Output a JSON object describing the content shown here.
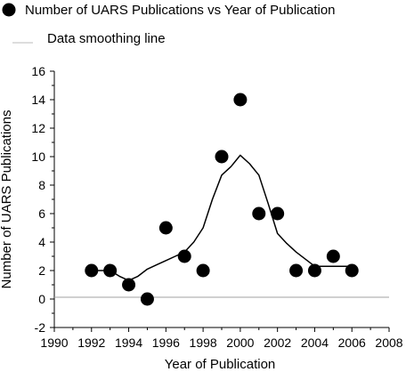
{
  "chart_data": {
    "type": "scatter",
    "xlabel": "Year of Publication",
    "ylabel": "Number of UARS Publications",
    "xlim": [
      1990,
      2008
    ],
    "ylim": [
      -2,
      16
    ],
    "x_ticks": [
      "1990",
      "1992",
      "1994",
      "1996",
      "1998",
      "2000",
      "2002",
      "2004",
      "2006",
      "2008"
    ],
    "y_ticks": [
      "-2",
      "0",
      "2",
      "4",
      "6",
      "8",
      "10",
      "12",
      "14",
      "16"
    ],
    "grid": false,
    "legend_position": "top-left",
    "series": [
      {
        "name": "Number of UARS Publications vs Year of Publication",
        "kind": "scatter",
        "color": "#000000",
        "x": [
          1992,
          1993,
          1994,
          1995,
          1996,
          1997,
          1998,
          1999,
          2000,
          2001,
          2002,
          2003,
          2004,
          2005,
          2006
        ],
        "y": [
          2,
          2,
          1,
          0,
          5,
          3,
          2,
          10,
          14,
          6,
          6,
          2,
          2,
          3,
          2
        ]
      },
      {
        "name": "Data smoothing line",
        "kind": "line",
        "color": "#000000",
        "x": [
          1992,
          1993,
          1993.5,
          1994,
          1994.5,
          1995,
          1995.5,
          1996,
          1996.5,
          1997,
          1997.5,
          1998,
          1998.5,
          1999,
          1999.5,
          2000,
          2000.5,
          2001,
          2001.5,
          2002,
          2002.5,
          2003,
          2003.5,
          2004,
          2005,
          2006
        ],
        "y": [
          2,
          2,
          1.6,
          1.3,
          1.6,
          2.1,
          2.4,
          2.7,
          3.0,
          3.3,
          4.0,
          5.0,
          7.0,
          8.7,
          9.3,
          10.1,
          9.5,
          8.7,
          6.7,
          4.6,
          3.9,
          3.3,
          2.8,
          2.3,
          2.3,
          2.3
        ]
      }
    ]
  }
}
